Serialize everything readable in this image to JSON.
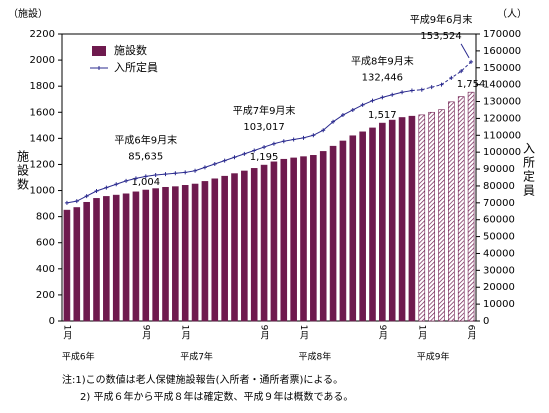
{
  "chart_data": {
    "type": "bar_line",
    "left_axis_unit": "（施設）",
    "right_axis_unit": "（人）",
    "y_title": "施設数",
    "y2_title": "入所定員",
    "categories": [
      "1月",
      null,
      null,
      null,
      null,
      null,
      null,
      null,
      "9月",
      null,
      null,
      null,
      "1月",
      null,
      null,
      null,
      null,
      null,
      null,
      null,
      "9月",
      null,
      null,
      null,
      "1月",
      null,
      null,
      null,
      null,
      null,
      null,
      null,
      "9月",
      null,
      null,
      null,
      "1月",
      null,
      null,
      null,
      null,
      "6月"
    ],
    "group_labels": [
      "平成6年",
      null,
      null,
      null,
      null,
      null,
      null,
      null,
      null,
      null,
      null,
      null,
      "平成7年",
      null,
      null,
      null,
      null,
      null,
      null,
      null,
      null,
      null,
      null,
      null,
      "平成8年",
      null,
      null,
      null,
      null,
      null,
      null,
      null,
      null,
      null,
      null,
      null,
      "平成9年",
      null,
      null,
      null,
      null,
      null
    ],
    "ylim": [
      0,
      2200
    ],
    "yticks": [
      0,
      200,
      400,
      600,
      800,
      1000,
      1200,
      1400,
      1600,
      1800,
      2000,
      2200
    ],
    "y2lim": [
      0,
      170000
    ],
    "y2ticks": [
      0,
      10000,
      20000,
      30000,
      40000,
      50000,
      60000,
      70000,
      80000,
      90000,
      100000,
      110000,
      120000,
      130000,
      140000,
      150000,
      160000,
      170000
    ],
    "series": [
      {
        "name": "施設数",
        "kind": "bar",
        "color": "#6e1a4e",
        "values": [
          850,
          870,
          910,
          940,
          955,
          965,
          975,
          990,
          1004,
          1015,
          1025,
          1030,
          1040,
          1050,
          1070,
          1090,
          1110,
          1130,
          1150,
          1170,
          1195,
          1220,
          1240,
          1250,
          1260,
          1270,
          1300,
          1340,
          1380,
          1420,
          1450,
          1480,
          1517,
          1540,
          1560,
          1570,
          1580,
          1600,
          1620,
          1680,
          1720,
          1754
        ],
        "value_labels": [
          null,
          null,
          null,
          null,
          null,
          null,
          null,
          null,
          "1,004",
          null,
          null,
          null,
          null,
          null,
          null,
          null,
          null,
          null,
          null,
          null,
          "1,195",
          null,
          null,
          null,
          null,
          null,
          null,
          null,
          null,
          null,
          null,
          null,
          "1,517",
          null,
          null,
          null,
          null,
          null,
          null,
          null,
          null,
          "1,754"
        ],
        "estimated": [
          false,
          false,
          false,
          false,
          false,
          false,
          false,
          false,
          false,
          false,
          false,
          false,
          false,
          false,
          false,
          false,
          false,
          false,
          false,
          false,
          false,
          false,
          false,
          false,
          false,
          false,
          false,
          false,
          false,
          false,
          false,
          false,
          false,
          false,
          false,
          false,
          true,
          true,
          true,
          true,
          true,
          true
        ]
      },
      {
        "name": "入所定員",
        "kind": "line",
        "axis": "y2",
        "color": "#2b2b8f",
        "values": [
          70000,
          71000,
          74000,
          77000,
          79000,
          81000,
          83000,
          84500,
          85635,
          86500,
          87000,
          87500,
          88000,
          89000,
          91000,
          93000,
          95000,
          97000,
          99000,
          101000,
          103017,
          105000,
          106500,
          107500,
          108500,
          110000,
          113000,
          118000,
          122000,
          125000,
          128000,
          130500,
          132446,
          134000,
          135500,
          136500,
          137000,
          138500,
          140000,
          144000,
          148000,
          153524
        ],
        "value_labels": [
          null,
          null,
          null,
          null,
          null,
          null,
          null,
          null,
          "85,635",
          null,
          null,
          null,
          null,
          null,
          null,
          null,
          null,
          null,
          null,
          null,
          "103,017",
          null,
          null,
          null,
          null,
          null,
          null,
          null,
          null,
          null,
          null,
          null,
          "132,446",
          null,
          null,
          null,
          null,
          null,
          null,
          null,
          null,
          "153,524"
        ],
        "point_titles": [
          null,
          null,
          null,
          null,
          null,
          null,
          null,
          null,
          "平成6年9月末",
          null,
          null,
          null,
          null,
          null,
          null,
          null,
          null,
          null,
          null,
          null,
          "平成7年9月末",
          null,
          null,
          null,
          null,
          null,
          null,
          null,
          null,
          null,
          null,
          null,
          "平成8年9月末",
          null,
          null,
          null,
          null,
          null,
          null,
          null,
          null,
          "平成9年6月末"
        ]
      }
    ],
    "notes": [
      "注:1)この数値は老人保健施設報告(入所者・通所者票)による。",
      "2) 平成６年から平成８年は確定数、平成９年は概数である。"
    ]
  }
}
